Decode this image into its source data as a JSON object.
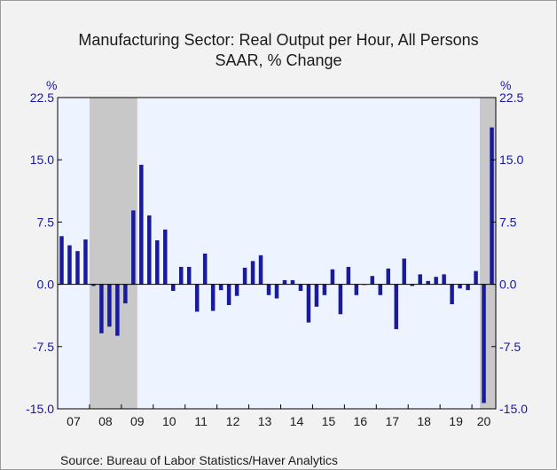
{
  "chart_data": {
    "type": "bar",
    "title": "Manufacturing Sector: Real Output per Hour, All Persons",
    "subtitle": "SAAR, % Change",
    "y_unit_left": "%",
    "y_unit_right": "%",
    "ylim": [
      -15.0,
      22.5
    ],
    "y_ticks": [
      "22.5",
      "15.0",
      "7.5",
      "0.0",
      "-7.5",
      "-15.0"
    ],
    "y_tick_values": [
      22.5,
      15.0,
      7.5,
      0.0,
      -7.5,
      -15.0
    ],
    "x_year_labels": [
      "07",
      "08",
      "09",
      "10",
      "11",
      "12",
      "13",
      "14",
      "15",
      "16",
      "17",
      "18",
      "19",
      "20"
    ],
    "x_period": {
      "start": "2007-Q1",
      "end": "2020-Q3",
      "frequency": "quarterly"
    },
    "categories": [
      "2007-Q1",
      "2007-Q2",
      "2007-Q3",
      "2007-Q4",
      "2008-Q1",
      "2008-Q2",
      "2008-Q3",
      "2008-Q4",
      "2009-Q1",
      "2009-Q2",
      "2009-Q3",
      "2009-Q4",
      "2010-Q1",
      "2010-Q2",
      "2010-Q3",
      "2010-Q4",
      "2011-Q1",
      "2011-Q2",
      "2011-Q3",
      "2011-Q4",
      "2012-Q1",
      "2012-Q2",
      "2012-Q3",
      "2012-Q4",
      "2013-Q1",
      "2013-Q2",
      "2013-Q3",
      "2013-Q4",
      "2014-Q1",
      "2014-Q2",
      "2014-Q3",
      "2014-Q4",
      "2015-Q1",
      "2015-Q2",
      "2015-Q3",
      "2015-Q4",
      "2016-Q1",
      "2016-Q2",
      "2016-Q3",
      "2016-Q4",
      "2017-Q1",
      "2017-Q2",
      "2017-Q3",
      "2017-Q4",
      "2018-Q1",
      "2018-Q2",
      "2018-Q3",
      "2018-Q4",
      "2019-Q1",
      "2019-Q2",
      "2019-Q3",
      "2019-Q4",
      "2020-Q1",
      "2020-Q2",
      "2020-Q3"
    ],
    "values": [
      5.8,
      4.7,
      4.0,
      5.4,
      -0.2,
      -5.9,
      -5.1,
      -6.2,
      -2.3,
      8.9,
      14.4,
      8.3,
      5.3,
      6.6,
      -0.8,
      2.1,
      2.1,
      -3.3,
      3.7,
      -3.2,
      -0.7,
      -2.5,
      -1.4,
      2.0,
      2.8,
      3.5,
      -1.3,
      -1.7,
      0.5,
      0.5,
      -0.8,
      -4.6,
      -2.7,
      -1.3,
      1.8,
      -3.6,
      2.1,
      -1.3,
      0.0,
      1.0,
      -1.3,
      1.9,
      -5.4,
      3.1,
      -0.2,
      1.2,
      0.4,
      0.9,
      1.2,
      -2.4,
      -0.5,
      -0.7,
      1.6,
      -14.3,
      18.9
    ],
    "recessions": [
      {
        "start": "2008-Q1",
        "end": "2009-Q2"
      },
      {
        "start": "2020-Q2",
        "end": "2020-Q3"
      }
    ],
    "grid": false,
    "legend": "none",
    "colors": {
      "bar": "#1a1a9c",
      "plot_background": "#eef4ff",
      "recession": "#c8c8c8",
      "axis_labels": "#1515aa",
      "frame": "#f2f2f2"
    },
    "source": "Source:  Bureau of Labor Statistics/Haver Analytics"
  }
}
